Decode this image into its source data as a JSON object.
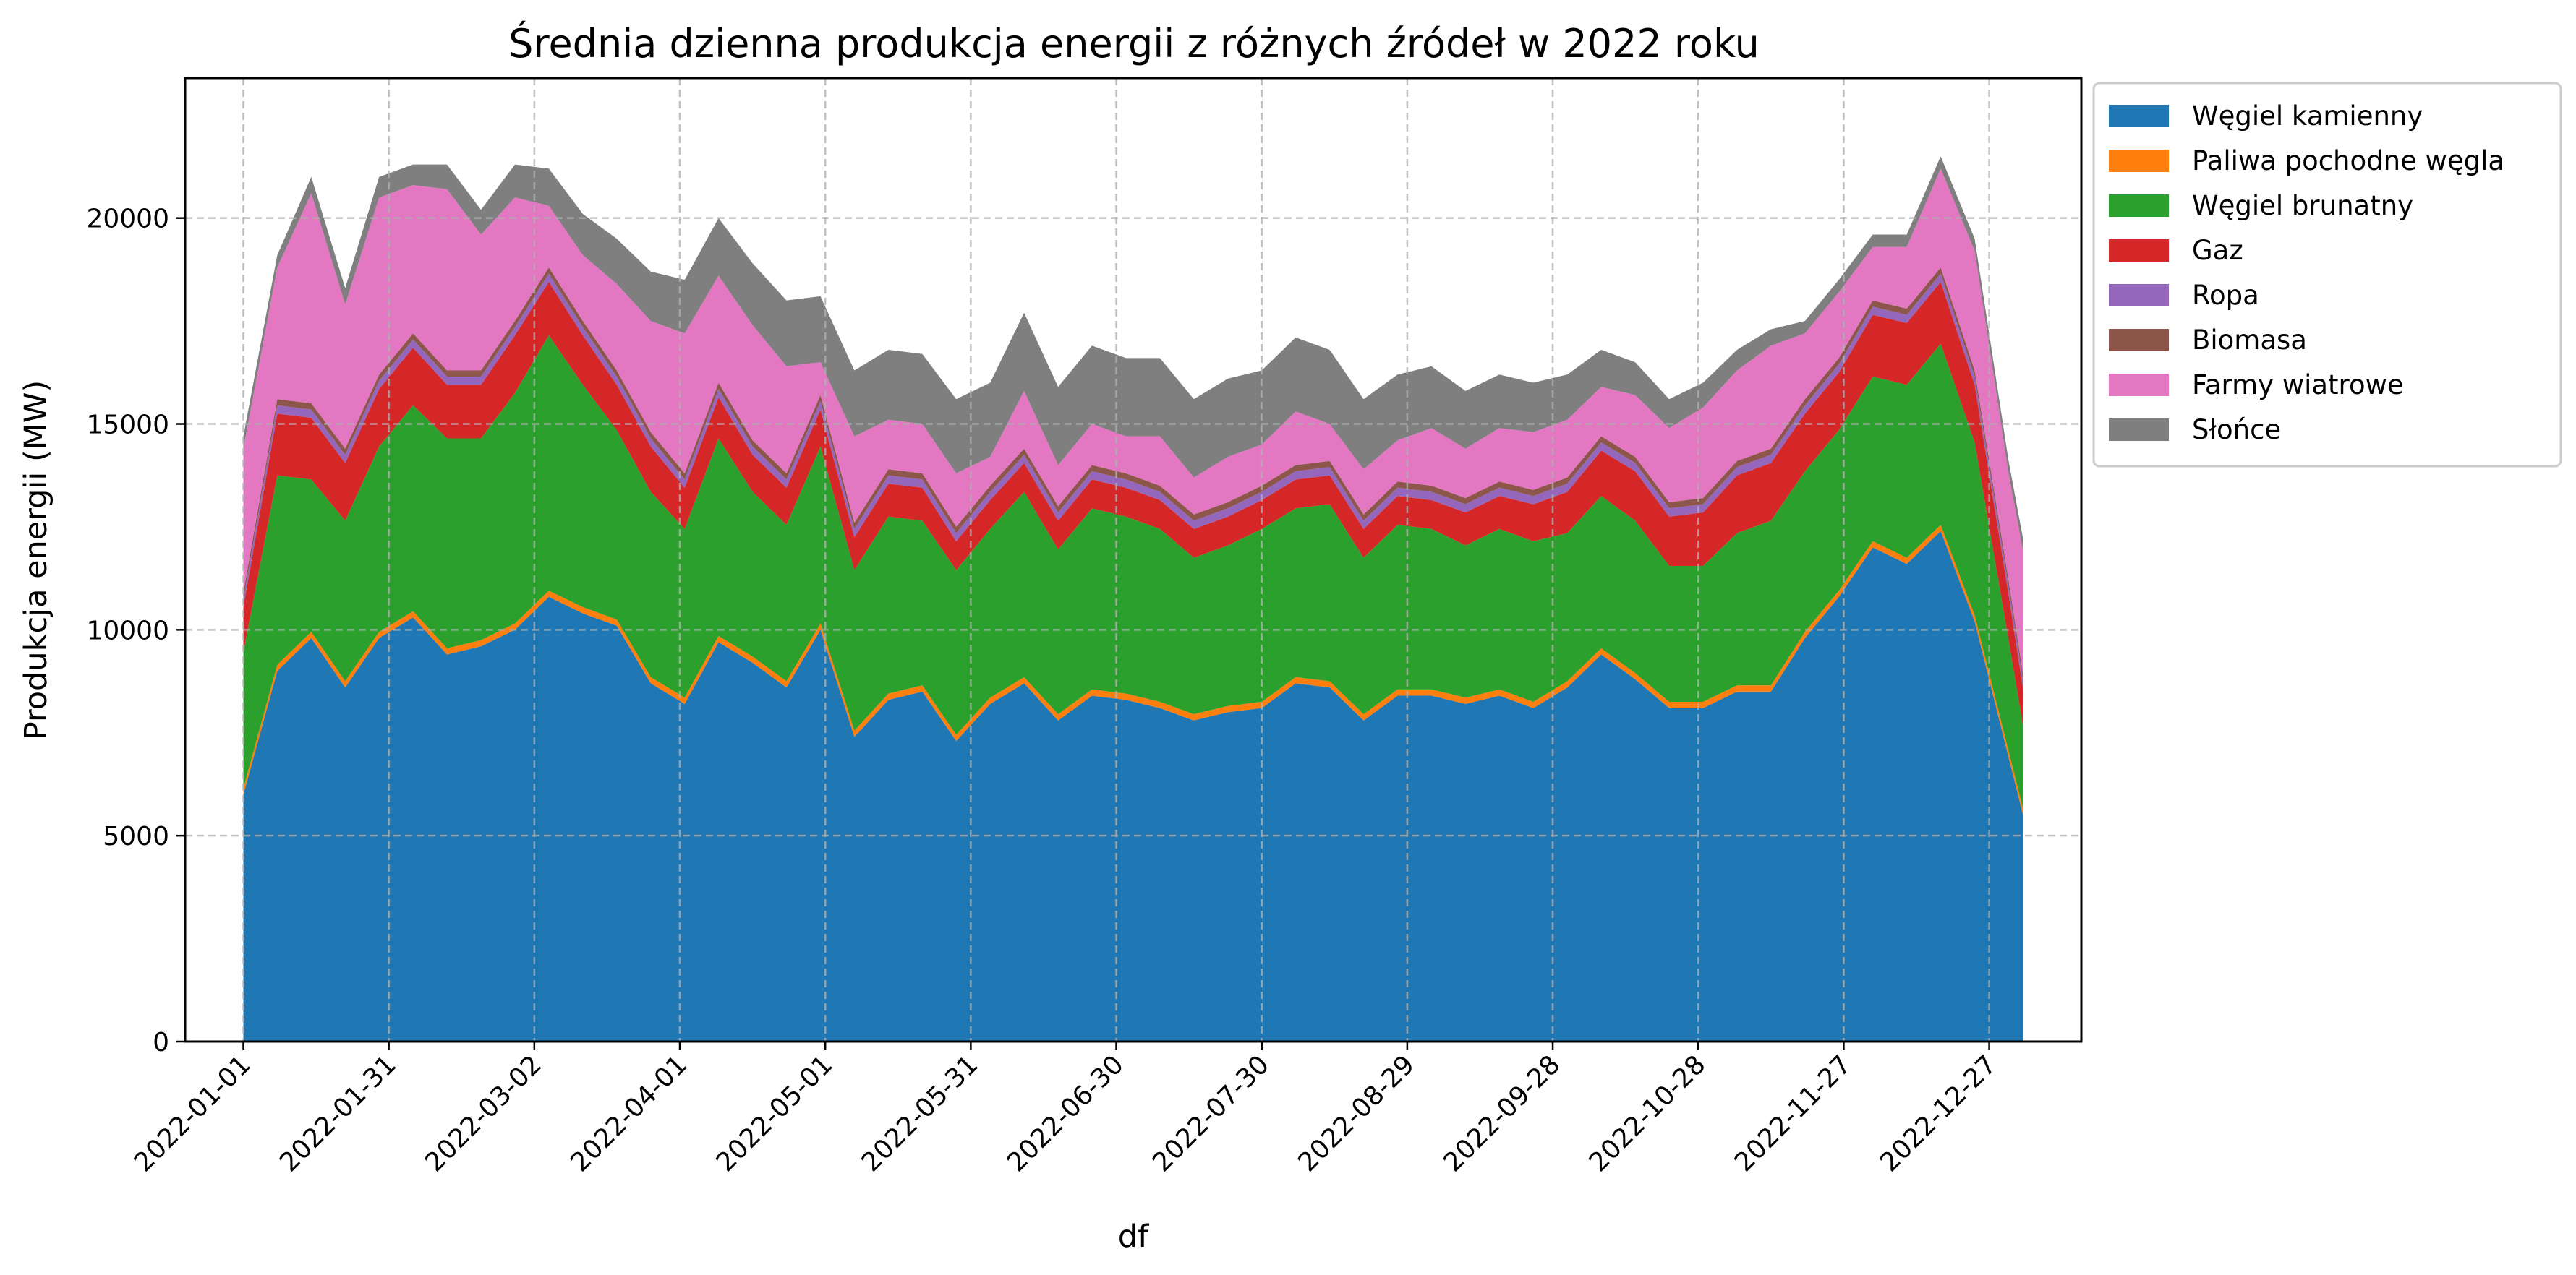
{
  "chart_data": {
    "type": "area",
    "stacked": true,
    "title": "Średnia dzienna produkcja energii z różnych źródeł w 2022 roku",
    "xlabel": "df",
    "ylabel": "Produkcja energii (MW)",
    "x_range": [
      "2022-01-01",
      "2023-01-03"
    ],
    "ylim": [
      0,
      23400
    ],
    "yticks": [
      0,
      5000,
      10000,
      15000,
      20000
    ],
    "xticks": [
      "2022-01-01",
      "2022-01-31",
      "2022-03-02",
      "2022-04-01",
      "2022-05-01",
      "2022-05-31",
      "2022-06-30",
      "2022-07-30",
      "2022-08-29",
      "2022-09-28",
      "2022-10-28",
      "2022-11-27",
      "2022-12-27"
    ],
    "grid": true,
    "legend_position": "outside-top-right",
    "x_dates": [
      "2022-01-01",
      "2022-01-08",
      "2022-01-15",
      "2022-01-22",
      "2022-01-29",
      "2022-02-05",
      "2022-02-12",
      "2022-02-19",
      "2022-02-26",
      "2022-03-05",
      "2022-03-12",
      "2022-03-19",
      "2022-03-26",
      "2022-04-02",
      "2022-04-09",
      "2022-04-16",
      "2022-04-23",
      "2022-04-30",
      "2022-05-07",
      "2022-05-14",
      "2022-05-21",
      "2022-05-28",
      "2022-06-04",
      "2022-06-11",
      "2022-06-18",
      "2022-06-25",
      "2022-07-02",
      "2022-07-09",
      "2022-07-16",
      "2022-07-23",
      "2022-07-30",
      "2022-08-06",
      "2022-08-13",
      "2022-08-20",
      "2022-08-27",
      "2022-09-03",
      "2022-09-10",
      "2022-09-17",
      "2022-09-24",
      "2022-10-01",
      "2022-10-08",
      "2022-10-15",
      "2022-10-22",
      "2022-10-29",
      "2022-11-05",
      "2022-11-12",
      "2022-11-19",
      "2022-11-26",
      "2022-12-03",
      "2022-12-10",
      "2022-12-17",
      "2022-12-24",
      "2022-12-31",
      "2023-01-03"
    ],
    "series": [
      {
        "name": "Węgiel kamienny",
        "color": "#1f77b4",
        "values": [
          6000,
          9000,
          9800,
          8600,
          9800,
          10300,
          9400,
          9600,
          10000,
          10800,
          10400,
          10100,
          8700,
          8200,
          9700,
          9200,
          8600,
          10000,
          7400,
          8300,
          8500,
          7300,
          8200,
          8700,
          7800,
          8400,
          8300,
          8100,
          7800,
          8000,
          8100,
          8700,
          8600,
          7800,
          8400,
          8400,
          8200,
          8400,
          8100,
          8600,
          9400,
          8800,
          8100,
          8100,
          8500,
          8500,
          9800,
          10800,
          12000,
          11600,
          12400,
          10200,
          6900,
          5500
        ]
      },
      {
        "name": "Paliwa pochodne węgla",
        "color": "#ff7f0e",
        "values": [
          150,
          150,
          150,
          150,
          150,
          150,
          150,
          150,
          150,
          150,
          150,
          150,
          150,
          150,
          150,
          150,
          150,
          150,
          150,
          150,
          150,
          150,
          150,
          150,
          150,
          150,
          150,
          150,
          150,
          150,
          150,
          150,
          150,
          150,
          150,
          150,
          150,
          150,
          150,
          150,
          150,
          150,
          150,
          150,
          150,
          150,
          150,
          150,
          150,
          150,
          150,
          150,
          150,
          150
        ]
      },
      {
        "name": "Węgiel brunatny",
        "color": "#2ca02c",
        "values": [
          3300,
          4600,
          3700,
          3900,
          4500,
          5000,
          5100,
          4900,
          5600,
          6200,
          5400,
          4600,
          4500,
          4100,
          4800,
          4000,
          3800,
          4300,
          3900,
          4300,
          4000,
          4000,
          4100,
          4500,
          4000,
          4400,
          4300,
          4200,
          3800,
          3900,
          4200,
          4100,
          4300,
          3800,
          4000,
          3900,
          3700,
          3900,
          3900,
          3600,
          3700,
          3700,
          3300,
          3300,
          3700,
          4000,
          3900,
          3900,
          4000,
          4200,
          4400,
          4200,
          2700,
          2000
        ]
      },
      {
        "name": "Gaz",
        "color": "#d62728",
        "values": [
          1100,
          1500,
          1500,
          1400,
          1400,
          1400,
          1300,
          1300,
          1400,
          1300,
          1200,
          1100,
          1100,
          1000,
          1000,
          900,
          900,
          900,
          800,
          800,
          800,
          700,
          700,
          700,
          700,
          700,
          700,
          700,
          700,
          700,
          700,
          700,
          700,
          700,
          700,
          700,
          800,
          800,
          900,
          1000,
          1100,
          1200,
          1200,
          1300,
          1400,
          1400,
          1400,
          1400,
          1500,
          1500,
          1500,
          1400,
          1100,
          900
        ]
      },
      {
        "name": "Ropa",
        "color": "#9467bd",
        "values": [
          200,
          200,
          200,
          200,
          200,
          200,
          200,
          200,
          200,
          200,
          200,
          200,
          200,
          200,
          200,
          200,
          200,
          200,
          200,
          200,
          200,
          200,
          200,
          200,
          200,
          200,
          200,
          200,
          200,
          200,
          200,
          200,
          200,
          200,
          200,
          200,
          200,
          200,
          200,
          200,
          200,
          200,
          200,
          200,
          200,
          200,
          200,
          200,
          200,
          200,
          200,
          200,
          200,
          200
        ]
      },
      {
        "name": "Biomasa",
        "color": "#8c564b",
        "values": [
          150,
          150,
          150,
          150,
          150,
          150,
          150,
          150,
          150,
          150,
          150,
          150,
          150,
          150,
          150,
          150,
          150,
          150,
          150,
          150,
          150,
          150,
          150,
          150,
          150,
          150,
          150,
          150,
          150,
          150,
          150,
          150,
          150,
          150,
          150,
          150,
          150,
          150,
          150,
          150,
          150,
          150,
          150,
          150,
          150,
          150,
          150,
          150,
          150,
          150,
          150,
          150,
          150,
          150
        ]
      },
      {
        "name": "Farmy wiatrowe",
        "color": "#e377c2",
        "values": [
          3500,
          3200,
          5100,
          3500,
          4300,
          3600,
          4400,
          3300,
          3000,
          1500,
          1600,
          2100,
          2700,
          3400,
          2600,
          2800,
          2600,
          800,
          2100,
          1200,
          1200,
          1300,
          700,
          1400,
          1000,
          1000,
          900,
          1200,
          900,
          1100,
          1000,
          1300,
          900,
          1100,
          1000,
          1400,
          1200,
          1300,
          1400,
          1400,
          1200,
          1500,
          1800,
          2200,
          2200,
          2500,
          1600,
          1600,
          1300,
          1500,
          2400,
          2900,
          2600,
          3000
        ]
      },
      {
        "name": "Słońce",
        "color": "#7f7f7f",
        "values": [
          300,
          300,
          400,
          400,
          500,
          500,
          600,
          600,
          800,
          900,
          1000,
          1100,
          1200,
          1300,
          1400,
          1500,
          1600,
          1600,
          1600,
          1700,
          1700,
          1800,
          1800,
          1900,
          1900,
          1900,
          1900,
          1900,
          1900,
          1900,
          1800,
          1800,
          1800,
          1700,
          1600,
          1500,
          1400,
          1300,
          1200,
          1100,
          900,
          800,
          700,
          600,
          500,
          400,
          300,
          300,
          300,
          300,
          300,
          300,
          300,
          300
        ]
      }
    ]
  }
}
